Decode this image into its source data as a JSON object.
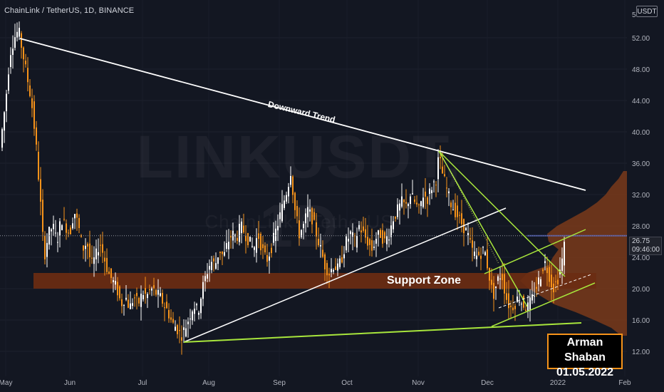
{
  "header": {
    "symbol_line": "ChainLink / TetherUS, 1D, BINANCE",
    "unit": "USDT"
  },
  "watermark": {
    "ticker": "LINKUSDT, 1D",
    "name": "ChainLink / TetherUS"
  },
  "price_tag": {
    "price": "26.75",
    "countdown": "09:46:00"
  },
  "annotations": {
    "trend": "Downward Trend",
    "support": "Support Zone"
  },
  "author": {
    "name": "Arman Shaban",
    "date": "01.05.2022"
  },
  "colors": {
    "background": "#131722",
    "up_candle": "#ffffff",
    "down_candle": "#f7931a",
    "support_zone": "#6b2c12",
    "volume_profile": "#7a3a1a",
    "trend_line": "#ffffff",
    "green_lines": "#a8e63c",
    "author_border": "#f7931a"
  },
  "chart_data": {
    "type": "candlestick",
    "ylim": [
      12,
      55
    ],
    "y_ticks": [
      "5",
      "52.00",
      "48.00",
      "44.00",
      "40.00",
      "36.00",
      "32.00",
      "28.00",
      "24.00",
      "20.00",
      "16.00",
      "12.00"
    ],
    "x_ticks": [
      "May",
      "Jun",
      "Jul",
      "Aug",
      "Sep",
      "Oct",
      "Nov",
      "Dec",
      "2022",
      "Feb"
    ],
    "current_price": 26.75,
    "support_zone": [
      20.0,
      22.0
    ],
    "close_path": [
      [
        0,
        38.0
      ],
      [
        8,
        44.0
      ],
      [
        14,
        50.0
      ],
      [
        20,
        52.0
      ],
      [
        26,
        53.0
      ],
      [
        32,
        50.0
      ],
      [
        38,
        47.0
      ],
      [
        44,
        44.0
      ],
      [
        50,
        39.0
      ],
      [
        56,
        32.0
      ],
      [
        62,
        24.0
      ],
      [
        68,
        27.0
      ],
      [
        74,
        28.0
      ],
      [
        80,
        26.0
      ],
      [
        86,
        29.0
      ],
      [
        92,
        28.0
      ],
      [
        98,
        27.0
      ],
      [
        104,
        30.0
      ],
      [
        110,
        28.0
      ],
      [
        116,
        25.0
      ],
      [
        122,
        26.0
      ],
      [
        128,
        23.0
      ],
      [
        134,
        24.0
      ],
      [
        140,
        26.0
      ],
      [
        146,
        24.0
      ],
      [
        152,
        22.0
      ],
      [
        158,
        21.0
      ],
      [
        164,
        20.0
      ],
      [
        170,
        18.0
      ],
      [
        176,
        19.0
      ],
      [
        182,
        17.5
      ],
      [
        188,
        19.0
      ],
      [
        194,
        18.0
      ],
      [
        200,
        19.5
      ],
      [
        206,
        19.0
      ],
      [
        212,
        20.0
      ],
      [
        218,
        19.5
      ],
      [
        224,
        19.0
      ],
      [
        230,
        18.0
      ],
      [
        236,
        17.0
      ],
      [
        242,
        15.5
      ],
      [
        248,
        15.0
      ],
      [
        254,
        14.0
      ],
      [
        260,
        15.0
      ],
      [
        266,
        16.5
      ],
      [
        272,
        18.0
      ],
      [
        278,
        17.0
      ],
      [
        284,
        20.0
      ],
      [
        290,
        22.0
      ],
      [
        296,
        23.5
      ],
      [
        302,
        23.0
      ],
      [
        308,
        25.0
      ],
      [
        314,
        24.0
      ],
      [
        320,
        26.0
      ],
      [
        326,
        27.0
      ],
      [
        332,
        26.5
      ],
      [
        338,
        28.0
      ],
      [
        344,
        27.0
      ],
      [
        350,
        26.0
      ],
      [
        356,
        25.0
      ],
      [
        362,
        27.0
      ],
      [
        368,
        25.0
      ],
      [
        374,
        23.5
      ],
      [
        380,
        25.0
      ],
      [
        386,
        27.0
      ],
      [
        392,
        29.0
      ],
      [
        398,
        31.0
      ],
      [
        404,
        33.0
      ],
      [
        408,
        35.0
      ],
      [
        414,
        30.0
      ],
      [
        420,
        27.0
      ],
      [
        426,
        28.0
      ],
      [
        432,
        30.0
      ],
      [
        438,
        29.0
      ],
      [
        444,
        27.0
      ],
      [
        450,
        25.0
      ],
      [
        456,
        23.0
      ],
      [
        462,
        22.0
      ],
      [
        468,
        23.0
      ],
      [
        474,
        22.5
      ],
      [
        480,
        24.0
      ],
      [
        486,
        26.0
      ],
      [
        492,
        27.0
      ],
      [
        498,
        26.0
      ],
      [
        504,
        28.0
      ],
      [
        510,
        27.0
      ],
      [
        516,
        26.0
      ],
      [
        522,
        25.0
      ],
      [
        528,
        26.5
      ],
      [
        534,
        27.0
      ],
      [
        540,
        26.0
      ],
      [
        546,
        27.0
      ],
      [
        552,
        29.0
      ],
      [
        558,
        30.0
      ],
      [
        564,
        31.0
      ],
      [
        570,
        30.5
      ],
      [
        576,
        32.0
      ],
      [
        582,
        31.0
      ],
      [
        588,
        30.0
      ],
      [
        594,
        32.0
      ],
      [
        600,
        31.5
      ],
      [
        606,
        33.0
      ],
      [
        612,
        34.0
      ],
      [
        616,
        37.0
      ],
      [
        620,
        35.0
      ],
      [
        626,
        33.0
      ],
      [
        632,
        31.0
      ],
      [
        638,
        30.0
      ],
      [
        644,
        29.0
      ],
      [
        650,
        28.0
      ],
      [
        656,
        27.0
      ],
      [
        662,
        25.0
      ],
      [
        668,
        24.0
      ],
      [
        674,
        24.5
      ],
      [
        680,
        25.0
      ],
      [
        686,
        22.0
      ],
      [
        692,
        19.0
      ],
      [
        698,
        21.0
      ],
      [
        704,
        22.0
      ],
      [
        710,
        19.0
      ],
      [
        716,
        17.5
      ],
      [
        722,
        18.0
      ],
      [
        728,
        19.0
      ],
      [
        734,
        18.0
      ],
      [
        740,
        17.5
      ],
      [
        746,
        18.5
      ],
      [
        752,
        20.0
      ],
      [
        758,
        21.5
      ],
      [
        764,
        23.5
      ],
      [
        770,
        22.0
      ],
      [
        776,
        20.0
      ],
      [
        782,
        21.0
      ],
      [
        788,
        23.0
      ],
      [
        794,
        26.75
      ]
    ]
  }
}
